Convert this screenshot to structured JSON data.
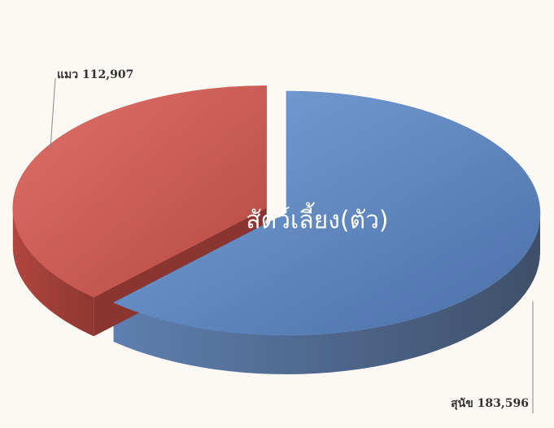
{
  "chart_data": {
    "type": "pie",
    "title": "สัตว์เลี้ยง(ตัว)",
    "categories": [
      "สุนัข",
      "แมว"
    ],
    "values": [
      183596,
      112907
    ],
    "value_labels": [
      "183,596",
      "112,907"
    ],
    "colors": [
      "#5b83c0",
      "#d2584f"
    ]
  }
}
